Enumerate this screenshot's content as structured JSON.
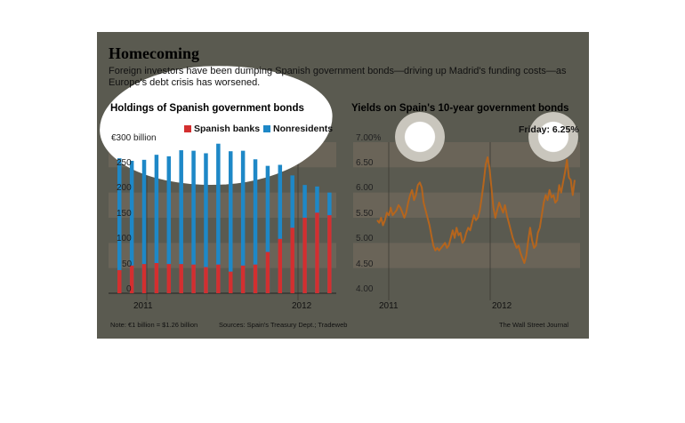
{
  "title": "Homecoming",
  "subtitle": "Foreign investors have been dumping Spanish government bonds—driving up Madrid's funding costs—as Europe's debt crisis has worsened.",
  "note": "Note: €1 billion = $1.26 billion",
  "sources": "Sources: Spain's Treasury Dept.; Tradeweb",
  "credit": "The Wall Street Journal",
  "colors": {
    "spanish_banks": "#d32f2f",
    "nonresidents": "#1e88c7",
    "yield_line": "#b5651d",
    "band": "#6a6458"
  },
  "chart_data": [
    {
      "type": "bar",
      "title": "Holdings of Spanish government bonds",
      "unit_label": "€300 billion",
      "ylim": [
        0,
        300
      ],
      "ytick_labels": [
        "250",
        "200",
        "150",
        "100",
        "50",
        "0"
      ],
      "xtick_labels": [
        "2011",
        "2012"
      ],
      "legend_placement": "top-right",
      "categories": [
        "Jan 2011",
        "Feb 2011",
        "Mar 2011",
        "Apr 2011",
        "May 2011",
        "Jun 2011",
        "Jul 2011",
        "Aug 2011",
        "Sep 2011",
        "Oct 2011",
        "Nov 2011",
        "Dec 2011",
        "Jan 2012",
        "Feb 2012",
        "Mar 2012",
        "Apr 2012",
        "May 2012",
        "Jun 2012"
      ],
      "series": [
        {
          "name": "Spanish banks",
          "values": [
            46,
            55,
            58,
            60,
            58,
            58,
            57,
            52,
            57,
            43,
            55,
            57,
            82,
            108,
            130,
            150,
            160,
            155
          ]
        },
        {
          "name": "Nonresidents",
          "values": [
            268,
            263,
            265,
            275,
            272,
            284,
            283,
            278,
            297,
            282,
            283,
            266,
            253,
            255,
            234,
            215,
            212,
            200
          ]
        }
      ]
    },
    {
      "type": "line",
      "title": "Yields on Spain's 10-year government bonds",
      "annotation": "Friday: 6.25%",
      "ylim": [
        4.0,
        7.0
      ],
      "ytick_labels": [
        "7.00%",
        "6.50",
        "6.00",
        "5.50",
        "5.00",
        "4.50",
        "4.00"
      ],
      "xtick_labels": [
        "2011",
        "2012"
      ],
      "series": [
        {
          "name": "",
          "x_range": [
            "2011-01-03",
            "2012-06-22"
          ],
          "values": [
            5.45,
            5.4,
            5.5,
            5.35,
            5.45,
            5.6,
            5.55,
            5.7,
            5.55,
            5.6,
            5.65,
            5.75,
            5.7,
            5.6,
            5.5,
            5.6,
            5.8,
            5.95,
            6.05,
            5.85,
            5.95,
            6.15,
            6.2,
            6.1,
            5.8,
            5.65,
            5.5,
            5.35,
            5.15,
            4.95,
            4.85,
            4.9,
            4.85,
            4.9,
            4.95,
            5.0,
            4.9,
            4.95,
            5.1,
            5.25,
            5.1,
            5.3,
            5.15,
            5.2,
            5.0,
            5.05,
            5.2,
            5.3,
            5.25,
            5.4,
            5.55,
            5.45,
            5.5,
            5.65,
            5.9,
            6.2,
            6.55,
            6.7,
            6.5,
            6.1,
            5.7,
            5.5,
            5.65,
            5.8,
            5.7,
            5.6,
            5.75,
            5.55,
            5.4,
            5.25,
            5.1,
            5.0,
            4.9,
            4.95,
            4.8,
            4.7,
            4.6,
            4.75,
            5.05,
            5.3,
            5.05,
            4.9,
            4.95,
            5.2,
            5.3,
            5.55,
            5.8,
            5.95,
            5.85,
            6.05,
            5.9,
            5.95,
            5.8,
            5.85,
            6.15,
            6.0,
            6.2,
            6.4,
            6.65,
            6.3,
            6.25,
            5.95,
            6.25
          ]
        }
      ]
    }
  ]
}
